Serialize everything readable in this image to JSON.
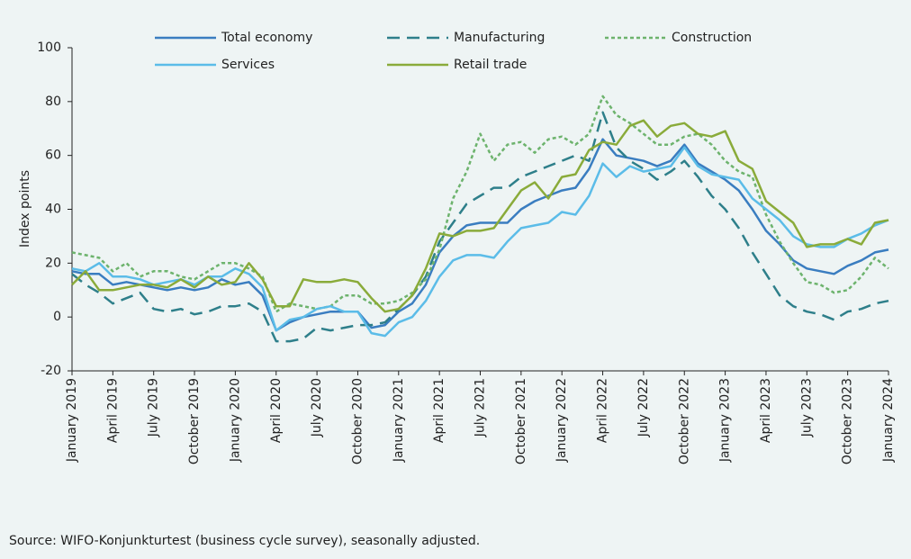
{
  "chart_data": {
    "type": "line",
    "y_label": "Index points",
    "source": "Source: WIFO-Konjunkturtest (business cycle survey), seasonally adjusted.",
    "categories": [
      "January 2019",
      null,
      null,
      "April 2019",
      null,
      null,
      "July 2019",
      null,
      null,
      "October 2019",
      null,
      null,
      "January 2020",
      null,
      null,
      "April 2020",
      null,
      null,
      "July 2020",
      null,
      null,
      "October 2020",
      null,
      null,
      "January 2021",
      null,
      null,
      "April 2021",
      null,
      null,
      "July 2021",
      null,
      null,
      "October 2021",
      null,
      null,
      "January 2022",
      null,
      null,
      "April 2022",
      null,
      null,
      "July 2022",
      null,
      null,
      "October 2022",
      null,
      null,
      "January 2023",
      null,
      null,
      "April 2023",
      null,
      null,
      "July 2023",
      null,
      null,
      "October 2023",
      null,
      null,
      "January 2024"
    ],
    "series": [
      {
        "name": "Total economy",
        "color": "#3a7dc0",
        "dash": "solid",
        "values": [
          17,
          16,
          16,
          12,
          13,
          12,
          11,
          10,
          11,
          10,
          11,
          14,
          12,
          13,
          8,
          -5,
          -2,
          0,
          1,
          2,
          2,
          2,
          -4,
          -3,
          2,
          5,
          12,
          24,
          30,
          34,
          35,
          35,
          35,
          40,
          43,
          45,
          47,
          48,
          55,
          66,
          60,
          59,
          58,
          56,
          58,
          64,
          57,
          54,
          51,
          47,
          40,
          32,
          27,
          21,
          18,
          17,
          16,
          19,
          21,
          24,
          25
        ]
      },
      {
        "name": "Manufacturing",
        "color": "#2e7f8a",
        "dash": "dashed",
        "values": [
          16,
          12,
          9,
          5,
          7,
          9,
          3,
          2,
          3,
          1,
          2,
          4,
          4,
          5,
          2,
          -9,
          -9,
          -8,
          -4,
          -5,
          -4,
          -3,
          -3,
          -2,
          3,
          8,
          15,
          28,
          35,
          42,
          45,
          48,
          48,
          52,
          54,
          56,
          58,
          60,
          58,
          76,
          63,
          58,
          55,
          51,
          54,
          58,
          52,
          45,
          40,
          33,
          24,
          16,
          8,
          4,
          2,
          1,
          -1,
          2,
          3,
          5,
          6
        ]
      },
      {
        "name": "Construction",
        "color": "#6db36d",
        "dash": "dotted",
        "values": [
          24,
          23,
          22,
          17,
          20,
          15,
          17,
          17,
          15,
          14,
          17,
          20,
          20,
          18,
          15,
          2,
          5,
          4,
          3,
          4,
          8,
          8,
          5,
          5,
          6,
          9,
          14,
          25,
          44,
          54,
          68,
          58,
          64,
          65,
          61,
          66,
          67,
          64,
          68,
          82,
          75,
          72,
          68,
          64,
          64,
          67,
          68,
          64,
          58,
          54,
          52,
          38,
          28,
          20,
          13,
          12,
          9,
          10,
          15,
          22,
          18
        ]
      },
      {
        "name": "Services",
        "color": "#5bbce8",
        "dash": "solid",
        "values": [
          18,
          17,
          20,
          15,
          15,
          14,
          12,
          13,
          14,
          12,
          15,
          15,
          18,
          16,
          11,
          -5,
          -1,
          0,
          3,
          4,
          2,
          2,
          -6,
          -7,
          -2,
          0,
          6,
          15,
          21,
          23,
          23,
          22,
          28,
          33,
          34,
          35,
          39,
          38,
          45,
          57,
          52,
          56,
          54,
          55,
          56,
          63,
          56,
          53,
          52,
          51,
          44,
          40,
          36,
          30,
          27,
          26,
          26,
          29,
          31,
          34,
          36
        ]
      },
      {
        "name": "Retail trade",
        "color": "#8aab3a",
        "dash": "solid",
        "values": [
          12,
          17,
          10,
          10,
          11,
          12,
          12,
          11,
          14,
          11,
          15,
          12,
          13,
          20,
          14,
          4,
          4,
          14,
          13,
          13,
          14,
          13,
          7,
          2,
          3,
          8,
          18,
          31,
          30,
          32,
          32,
          33,
          40,
          47,
          50,
          44,
          52,
          53,
          62,
          65,
          64,
          71,
          73,
          67,
          71,
          72,
          68,
          67,
          69,
          58,
          55,
          43,
          39,
          35,
          26,
          27,
          27,
          29,
          27,
          35,
          36
        ]
      }
    ],
    "ylim": [
      -20,
      100
    ],
    "yticks": [
      -20,
      0,
      20,
      40,
      60,
      80,
      100
    ]
  }
}
